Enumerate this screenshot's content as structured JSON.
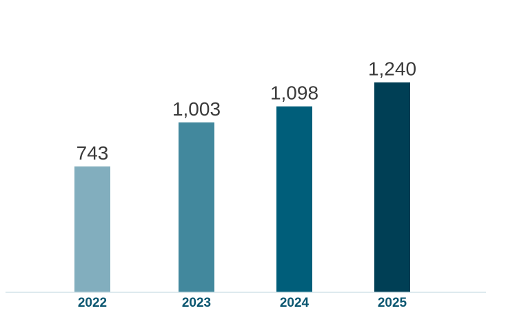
{
  "chart_data": {
    "type": "bar",
    "categories": [
      "2022",
      "2023",
      "2024",
      "2025"
    ],
    "values": [
      743,
      1003,
      1098,
      1240
    ],
    "value_labels": [
      "743",
      "1,003",
      "1,098",
      "1,240"
    ],
    "bar_colors": [
      "#82AEBE",
      "#42889D",
      "#005E7A",
      "#003F55"
    ],
    "axis_color": "#D3E4E8",
    "title": "",
    "xlabel": "",
    "ylabel": "",
    "ylim": [
      0,
      1320
    ],
    "grid": false,
    "legend": "none"
  }
}
